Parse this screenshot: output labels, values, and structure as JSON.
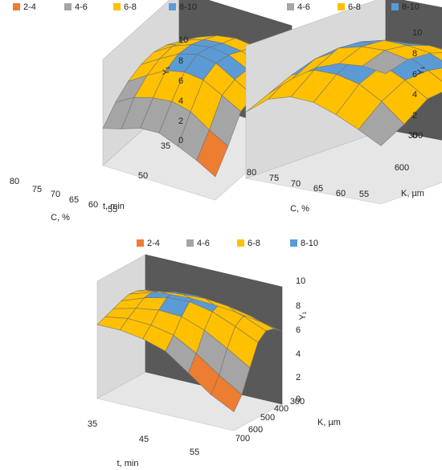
{
  "colors": {
    "2-4": "#ED7D31",
    "4-6": "#A5A5A5",
    "6-8": "#FFC000",
    "8-10": "#5B9BD5",
    "back_wall": "#595959",
    "side_wall": "#D9D9D9",
    "floor": "#E6E6E6"
  },
  "chart_data": [
    {
      "type": "surface",
      "legend": [
        "2-4",
        "4-6",
        "6-8",
        "8-10"
      ],
      "z_label": "Y₁",
      "z_ticks": [
        "0",
        "2",
        "4",
        "6",
        "8",
        "10"
      ],
      "x_label": "C, %",
      "x_ticks": [
        "80",
        "75",
        "70",
        "65",
        "60",
        "55"
      ],
      "y_label": "t, min",
      "y_ticks": [
        "50",
        "35"
      ],
      "zlim": [
        0,
        10
      ],
      "rows": [
        [
          5.0,
          6.2,
          6.9,
          7.2,
          7.0,
          6.4,
          5.5
        ],
        [
          6.0,
          7.0,
          7.6,
          7.8,
          7.6,
          7.0,
          6.1
        ],
        [
          6.4,
          7.5,
          8.2,
          8.5,
          8.3,
          7.5,
          6.5
        ],
        [
          6.3,
          7.4,
          8.4,
          8.9,
          8.6,
          7.6,
          6.6
        ],
        [
          5.8,
          6.9,
          7.9,
          8.3,
          8.1,
          7.2,
          6.2
        ],
        [
          4.9,
          5.9,
          6.4,
          6.6,
          6.2,
          5.0,
          4.0
        ],
        [
          3.5,
          4.0,
          4.6,
          4.7,
          4.0,
          3.2,
          2.2
        ]
      ]
    },
    {
      "type": "surface",
      "legend": [
        "4-6",
        "6-8",
        "8-10"
      ],
      "z_label": "Y₁",
      "z_ticks": [
        "0",
        "2",
        "4",
        "6",
        "8",
        "10"
      ],
      "x_label": "C, %",
      "x_ticks": [
        "80",
        "75",
        "70",
        "65",
        "60",
        "55"
      ],
      "y_label": "K, µm",
      "y_ticks": [
        "600",
        "300"
      ],
      "zlim": [
        0,
        10
      ],
      "rows": [
        [
          4.2,
          5.6,
          6.4,
          6.8,
          6.7,
          6.2,
          5.6
        ],
        [
          5.4,
          6.9,
          7.6,
          7.9,
          7.7,
          7.0,
          6.0
        ],
        [
          6.2,
          7.8,
          8.6,
          8.7,
          8.3,
          7.6,
          6.6
        ],
        [
          6.5,
          8.3,
          9.1,
          9.2,
          8.8,
          7.9,
          6.9
        ],
        [
          6.3,
          8.1,
          9.0,
          9.1,
          8.6,
          7.8,
          6.7
        ],
        [
          5.8,
          7.5,
          8.2,
          8.2,
          7.8,
          6.8,
          5.4
        ],
        [
          5.0,
          6.3,
          6.8,
          6.7,
          6.1,
          5.3,
          4.4
        ]
      ]
    },
    {
      "type": "surface",
      "legend": [
        "2-4",
        "4-6",
        "6-8",
        "8-10"
      ],
      "z_label": "Y₁",
      "z_ticks": [
        "0",
        "2",
        "4",
        "6",
        "8",
        "10"
      ],
      "x_label": "t, min",
      "x_ticks": [
        "35",
        "45",
        "55"
      ],
      "y_label": "K, µm",
      "y_ticks": [
        "700",
        "600",
        "500",
        "400",
        "300"
      ],
      "zlim": [
        0,
        10
      ],
      "rows": [
        [
          7.0,
          7.1,
          7.2,
          7.1,
          6.9,
          6.6,
          6.2
        ],
        [
          7.3,
          7.7,
          7.9,
          8.0,
          7.8,
          7.4,
          6.8
        ],
        [
          7.4,
          8.0,
          8.5,
          8.6,
          8.4,
          7.8,
          7.0
        ],
        [
          7.2,
          7.9,
          8.4,
          8.5,
          8.1,
          7.3,
          6.4
        ],
        [
          6.9,
          7.4,
          7.7,
          7.6,
          6.9,
          5.8,
          4.6
        ],
        [
          6.6,
          6.9,
          6.8,
          6.4,
          5.3,
          3.9,
          2.7
        ],
        [
          6.3,
          6.3,
          6.0,
          5.4,
          4.0,
          2.6,
          1.6
        ]
      ]
    }
  ]
}
